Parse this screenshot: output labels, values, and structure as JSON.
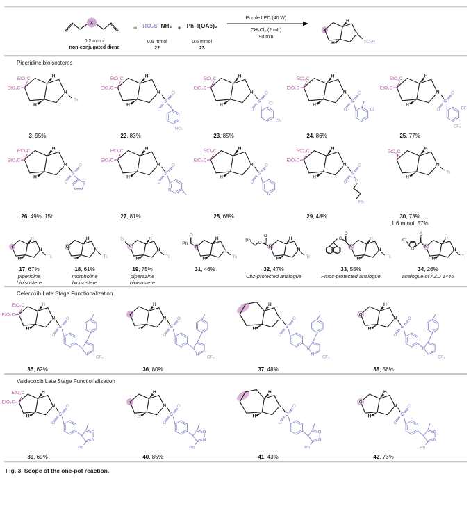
{
  "colors": {
    "magenta": "#b551a2",
    "periwinkle": "#8e92c8",
    "lavender": "#d3a7d4",
    "black": "#1c1c1c",
    "divider": "#c8c8c8"
  },
  "scheme": {
    "diene": {
      "x": "X",
      "amount": "0.2 mmol",
      "name": "non-conjugated diene"
    },
    "plus1": "+",
    "plus2": "+",
    "sulfonamide": {
      "formula_colored": "RO₂S",
      "formula_black": "–NH₂",
      "amount": "0.6 mmol",
      "number": "22"
    },
    "oxidant": {
      "formula": "Ph–I(OAc)₂",
      "amount": "0.6 mmol",
      "number": "23"
    },
    "conditions": {
      "above": "Purple LED (40 W)",
      "below1": "CH₂Cl₂ (2 mL)",
      "below2": "90 min"
    },
    "product": {
      "x": "X",
      "n_label": "SO₂R"
    }
  },
  "struct_texts": {
    "ester": "EtO₂C",
    "h": "H",
    "n": "N",
    "s": "S",
    "o": "O",
    "ts": "Ts",
    "no2": "NO₂",
    "cl": "Cl",
    "cn": "CN",
    "cf3": "CF₃",
    "ph": "Ph",
    "x": "X",
    "so2r": "SO₂R"
  },
  "sections": [
    {
      "title": "Piperidine bioisosteres",
      "rows": [
        [
          {
            "number": "3",
            "yield": "95%",
            "left": "diester",
            "nside": "ts"
          },
          {
            "number": "22",
            "yield": "83%",
            "left": "diester",
            "nside": "ar_no2"
          },
          {
            "number": "23",
            "yield": "85%",
            "left": "diester",
            "nside": "ar_cl_cn"
          },
          {
            "number": "24",
            "yield": "86%",
            "left": "diester",
            "nside": "ar_me_cl"
          },
          {
            "number": "25",
            "yield": "77%",
            "left": "diester",
            "nside": "ar_2cf3"
          }
        ],
        [
          {
            "number": "26",
            "yield": "49%, 15h",
            "left": "diester",
            "nside": "thienyl"
          },
          {
            "number": "27",
            "yield": "81%",
            "left": "diester",
            "nside": "pyr_me"
          },
          {
            "number": "28",
            "yield": "68%",
            "left": "diester",
            "nside": "pyridyl"
          },
          {
            "number": "29",
            "yield": "48%",
            "left": "diester",
            "nside": "sulfonate_ph"
          },
          {
            "number": "30",
            "yield": "73%",
            "extra": "1.6 mmol, 57%",
            "left": "monoester",
            "nside": "ts"
          }
        ],
        [
          {
            "number": "17",
            "yield": "67%",
            "notes": [
              "piperidine",
              "bioisostere"
            ],
            "left": "ch2",
            "nside": "ts"
          },
          {
            "number": "18",
            "yield": "61%",
            "notes": [
              "morpholine",
              "bioisostere"
            ],
            "left": "o",
            "nside": "ts"
          },
          {
            "number": "19",
            "yield": "75%",
            "notes": [
              "piperazine",
              "bioisostere"
            ],
            "left": "nts",
            "nside": "ts"
          },
          {
            "number": "31",
            "yield": "46%",
            "left": "nbz",
            "nside": "ts"
          },
          {
            "number": "32",
            "yield": "47%",
            "notes": [
              "Cbz-protected analogue"
            ],
            "left": "ncbz",
            "nside": "ts"
          },
          {
            "number": "33",
            "yield": "55%",
            "notes": [
              "Fmoc-protected analogue"
            ],
            "left": "nfmoc",
            "nside": "ts"
          },
          {
            "number": "34",
            "yield": "26%",
            "notes": [
              "analogue of AZD 1446"
            ],
            "left": "nfuroyl",
            "nside": "ts"
          }
        ]
      ]
    },
    {
      "title": "Celecoxib Late Stage Functionalization",
      "rows": [
        [
          {
            "number": "35",
            "yield": "62%",
            "left": "diester",
            "nside": "celecoxib"
          },
          {
            "number": "36",
            "yield": "80%",
            "left": "ch2",
            "nside": "celecoxib"
          },
          {
            "number": "37",
            "yield": "48%",
            "left": "ring6",
            "nside": "celecoxib"
          },
          {
            "number": "38",
            "yield": "56%",
            "left": "o",
            "nside": "celecoxib"
          }
        ]
      ]
    },
    {
      "title": "Valdecoxib Late Stage Functionalization",
      "rows": [
        [
          {
            "number": "39",
            "yield": "69%",
            "left": "diester",
            "nside": "valdecoxib"
          },
          {
            "number": "40",
            "yield": "85%",
            "left": "ch2",
            "nside": "valdecoxib"
          },
          {
            "number": "41",
            "yield": "43%",
            "left": "ring6",
            "nside": "valdecoxib"
          },
          {
            "number": "42",
            "yield": "73%",
            "left": "o",
            "nside": "valdecoxib"
          }
        ]
      ]
    }
  ],
  "caption": "Fig. 3. Scope of the one-pot reaction."
}
